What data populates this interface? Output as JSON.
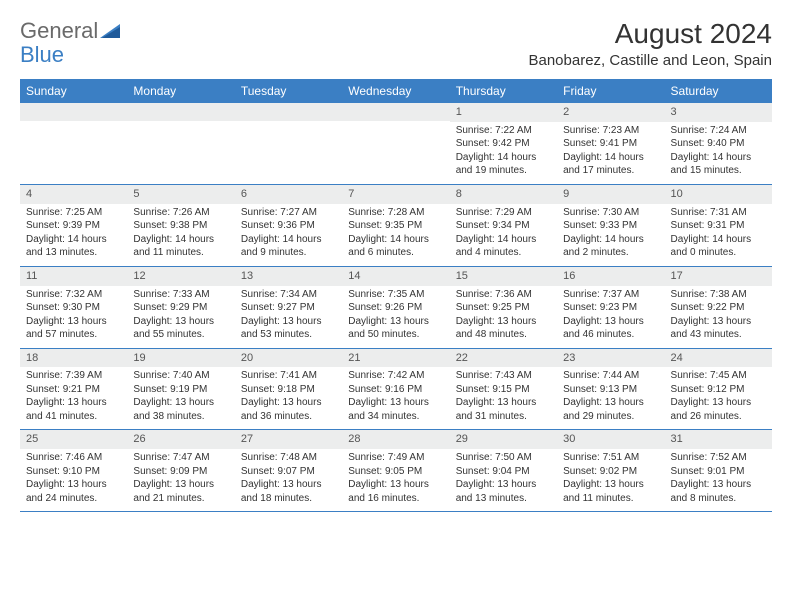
{
  "logo": {
    "text1": "General",
    "text2": "Blue"
  },
  "title": "August 2024",
  "subtitle": "Banobarez, Castille and Leon, Spain",
  "colors": {
    "header_bg": "#3b7fc4",
    "header_fg": "#ffffff",
    "daynum_bg": "#eceded",
    "text": "#333333",
    "logo_gray": "#6a6a6a",
    "logo_blue": "#3b7fc4"
  },
  "dayNames": [
    "Sunday",
    "Monday",
    "Tuesday",
    "Wednesday",
    "Thursday",
    "Friday",
    "Saturday"
  ],
  "weeks": [
    [
      null,
      null,
      null,
      null,
      {
        "n": "1",
        "sr": "7:22 AM",
        "ss": "9:42 PM",
        "dl": "14 hours and 19 minutes."
      },
      {
        "n": "2",
        "sr": "7:23 AM",
        "ss": "9:41 PM",
        "dl": "14 hours and 17 minutes."
      },
      {
        "n": "3",
        "sr": "7:24 AM",
        "ss": "9:40 PM",
        "dl": "14 hours and 15 minutes."
      }
    ],
    [
      {
        "n": "4",
        "sr": "7:25 AM",
        "ss": "9:39 PM",
        "dl": "14 hours and 13 minutes."
      },
      {
        "n": "5",
        "sr": "7:26 AM",
        "ss": "9:38 PM",
        "dl": "14 hours and 11 minutes."
      },
      {
        "n": "6",
        "sr": "7:27 AM",
        "ss": "9:36 PM",
        "dl": "14 hours and 9 minutes."
      },
      {
        "n": "7",
        "sr": "7:28 AM",
        "ss": "9:35 PM",
        "dl": "14 hours and 6 minutes."
      },
      {
        "n": "8",
        "sr": "7:29 AM",
        "ss": "9:34 PM",
        "dl": "14 hours and 4 minutes."
      },
      {
        "n": "9",
        "sr": "7:30 AM",
        "ss": "9:33 PM",
        "dl": "14 hours and 2 minutes."
      },
      {
        "n": "10",
        "sr": "7:31 AM",
        "ss": "9:31 PM",
        "dl": "14 hours and 0 minutes."
      }
    ],
    [
      {
        "n": "11",
        "sr": "7:32 AM",
        "ss": "9:30 PM",
        "dl": "13 hours and 57 minutes."
      },
      {
        "n": "12",
        "sr": "7:33 AM",
        "ss": "9:29 PM",
        "dl": "13 hours and 55 minutes."
      },
      {
        "n": "13",
        "sr": "7:34 AM",
        "ss": "9:27 PM",
        "dl": "13 hours and 53 minutes."
      },
      {
        "n": "14",
        "sr": "7:35 AM",
        "ss": "9:26 PM",
        "dl": "13 hours and 50 minutes."
      },
      {
        "n": "15",
        "sr": "7:36 AM",
        "ss": "9:25 PM",
        "dl": "13 hours and 48 minutes."
      },
      {
        "n": "16",
        "sr": "7:37 AM",
        "ss": "9:23 PM",
        "dl": "13 hours and 46 minutes."
      },
      {
        "n": "17",
        "sr": "7:38 AM",
        "ss": "9:22 PM",
        "dl": "13 hours and 43 minutes."
      }
    ],
    [
      {
        "n": "18",
        "sr": "7:39 AM",
        "ss": "9:21 PM",
        "dl": "13 hours and 41 minutes."
      },
      {
        "n": "19",
        "sr": "7:40 AM",
        "ss": "9:19 PM",
        "dl": "13 hours and 38 minutes."
      },
      {
        "n": "20",
        "sr": "7:41 AM",
        "ss": "9:18 PM",
        "dl": "13 hours and 36 minutes."
      },
      {
        "n": "21",
        "sr": "7:42 AM",
        "ss": "9:16 PM",
        "dl": "13 hours and 34 minutes."
      },
      {
        "n": "22",
        "sr": "7:43 AM",
        "ss": "9:15 PM",
        "dl": "13 hours and 31 minutes."
      },
      {
        "n": "23",
        "sr": "7:44 AM",
        "ss": "9:13 PM",
        "dl": "13 hours and 29 minutes."
      },
      {
        "n": "24",
        "sr": "7:45 AM",
        "ss": "9:12 PM",
        "dl": "13 hours and 26 minutes."
      }
    ],
    [
      {
        "n": "25",
        "sr": "7:46 AM",
        "ss": "9:10 PM",
        "dl": "13 hours and 24 minutes."
      },
      {
        "n": "26",
        "sr": "7:47 AM",
        "ss": "9:09 PM",
        "dl": "13 hours and 21 minutes."
      },
      {
        "n": "27",
        "sr": "7:48 AM",
        "ss": "9:07 PM",
        "dl": "13 hours and 18 minutes."
      },
      {
        "n": "28",
        "sr": "7:49 AM",
        "ss": "9:05 PM",
        "dl": "13 hours and 16 minutes."
      },
      {
        "n": "29",
        "sr": "7:50 AM",
        "ss": "9:04 PM",
        "dl": "13 hours and 13 minutes."
      },
      {
        "n": "30",
        "sr": "7:51 AM",
        "ss": "9:02 PM",
        "dl": "13 hours and 11 minutes."
      },
      {
        "n": "31",
        "sr": "7:52 AM",
        "ss": "9:01 PM",
        "dl": "13 hours and 8 minutes."
      }
    ]
  ],
  "labels": {
    "sunrise": "Sunrise: ",
    "sunset": "Sunset: ",
    "daylight": "Daylight: "
  }
}
